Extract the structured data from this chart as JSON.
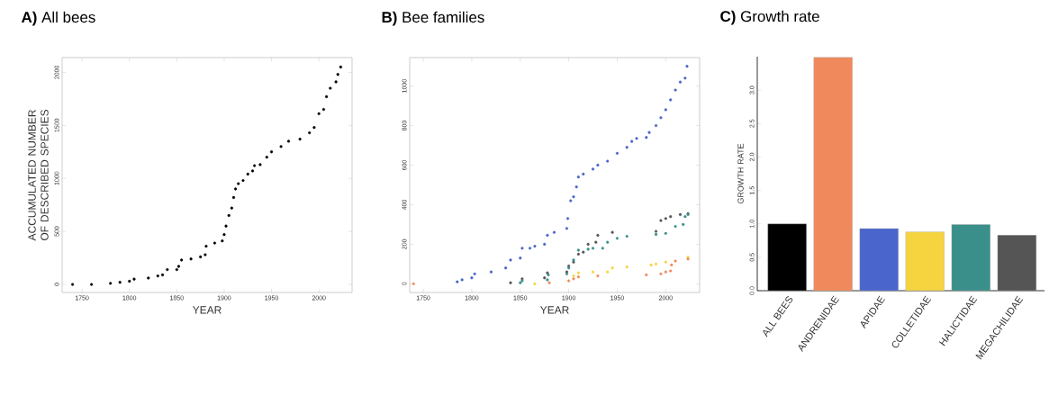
{
  "chart_data": [
    {
      "type": "scatter",
      "title": "**A)** All bees",
      "xlabel": "YEAR",
      "ylabel": "ACCUMULATED NUMBER OF DESCRIBED SPECIES",
      "marker": "circle",
      "xlim": [
        1729,
        2035
      ],
      "ylim": [
        -76,
        2139
      ],
      "xticks": [
        1750,
        1800,
        1850,
        1900,
        1950,
        2000
      ],
      "yticks": [
        0,
        500,
        1000,
        1500,
        2000
      ],
      "series": [
        {
          "color": "#000000",
          "x": [
            1740,
            1760,
            1780,
            1790,
            1800,
            1805,
            1820,
            1830,
            1835,
            1840,
            1850,
            1852,
            1855,
            1865,
            1875,
            1880,
            1881,
            1890,
            1898,
            1900,
            1902,
            1905,
            1908,
            1910,
            1912,
            1915,
            1920,
            1925,
            1930,
            1932,
            1938,
            1945,
            1950,
            1960,
            1968,
            1980,
            1990,
            1995,
            2000,
            2005,
            2008,
            2012,
            2018,
            2020,
            2023
          ],
          "values": [
            0,
            0,
            10,
            20,
            30,
            50,
            60,
            80,
            90,
            140,
            140,
            170,
            230,
            240,
            260,
            280,
            360,
            390,
            410,
            470,
            550,
            650,
            720,
            820,
            900,
            950,
            980,
            1040,
            1070,
            1120,
            1130,
            1200,
            1250,
            1300,
            1350,
            1370,
            1430,
            1480,
            1610,
            1650,
            1770,
            1850,
            1910,
            1980,
            2050
          ]
        }
      ]
    },
    {
      "type": "scatter",
      "title": "**B)** Bee families",
      "xlabel": "YEAR",
      "marker": "circle",
      "xlim": [
        1736,
        2035
      ],
      "ylim": [
        -44,
        1144
      ],
      "xticks": [
        1750,
        1800,
        1850,
        1900,
        1950,
        2000
      ],
      "yticks": [
        0,
        200,
        400,
        600,
        800,
        1000
      ],
      "series": [
        {
          "color": "#4a66cc",
          "x": [
            1785,
            1790,
            1800,
            1803,
            1820,
            1835,
            1840,
            1850,
            1852,
            1860,
            1865,
            1875,
            1878,
            1885,
            1898,
            1899,
            1902,
            1905,
            1908,
            1910,
            1915,
            1925,
            1930,
            1940,
            1950,
            1960,
            1965,
            1970,
            1980,
            1983,
            1990,
            1995,
            2000,
            2005,
            2010,
            2015,
            2020,
            2022
          ],
          "values": [
            10,
            20,
            30,
            50,
            60,
            80,
            120,
            130,
            180,
            180,
            190,
            200,
            245,
            260,
            280,
            330,
            420,
            440,
            490,
            540,
            555,
            580,
            600,
            620,
            660,
            690,
            720,
            735,
            740,
            765,
            800,
            840,
            880,
            930,
            980,
            1020,
            1040,
            1100
          ]
        },
        {
          "color": "#555555",
          "x": [
            1840,
            1852,
            1875,
            1878,
            1898,
            1900,
            1905,
            1910,
            1915,
            1920,
            1928,
            1930,
            1945,
            1990,
            1995,
            2000,
            2005,
            2015,
            2023
          ],
          "values": [
            5,
            25,
            30,
            55,
            60,
            90,
            110,
            150,
            160,
            200,
            210,
            245,
            260,
            265,
            320,
            330,
            340,
            350,
            355
          ]
        },
        {
          "color": "#3a8f8a",
          "x": [
            1850,
            1852,
            1878,
            1879,
            1898,
            1900,
            1905,
            1910,
            1920,
            1925,
            1935,
            1940,
            1950,
            1960,
            1990,
            2000,
            2010,
            2018,
            2020,
            2023
          ],
          "values": [
            5,
            15,
            20,
            45,
            50,
            80,
            120,
            170,
            175,
            180,
            180,
            210,
            230,
            240,
            250,
            255,
            290,
            300,
            340,
            350
          ]
        },
        {
          "color": "#f5d43f",
          "x": [
            1865,
            1880,
            1900,
            1905,
            1910,
            1925,
            1940,
            1945,
            1960,
            1985,
            1990,
            2000,
            2010,
            2023
          ],
          "values": [
            0,
            null,
            null,
            40,
            55,
            60,
            60,
            80,
            85,
            95,
            100,
            110,
            null,
            135
          ]
        },
        {
          "color": "#f08a5d",
          "x": [
            1740,
            1880,
            1900,
            1905,
            1910,
            1930,
            1980,
            1995,
            2000,
            2005,
            2006,
            2010,
            2023
          ],
          "values": [
            0,
            5,
            15,
            25,
            35,
            40,
            45,
            50,
            60,
            65,
            95,
            115,
            125
          ]
        }
      ]
    },
    {
      "type": "bar",
      "title": "**C)** Growth rate",
      "ylabel": "GROWTH RATE",
      "categories": [
        "ALL BEES",
        "ANDRENIDAE",
        "APIDAE",
        "COLLETIDAE",
        "HALICTIDAE",
        "MEGACHILIDAE"
      ],
      "values": [
        1.0,
        3.49,
        0.93,
        0.88,
        0.99,
        0.83
      ],
      "colors": [
        "#000000",
        "#f08a5d",
        "#4a66cc",
        "#f5d43f",
        "#3a8f8a",
        "#555555"
      ],
      "ylim": [
        0,
        3.5
      ],
      "yticks": [
        {
          "value": 0,
          "label": "0.0"
        },
        {
          "value": 0.5,
          "label": "0.5"
        },
        {
          "value": 1,
          "label": "1.0"
        },
        {
          "value": 1.5,
          "label": "1.5"
        },
        {
          "value": 2,
          "label": "2.0"
        },
        {
          "value": 2.5,
          "label": "2.5"
        },
        {
          "value": 3,
          "label": "3.0"
        }
      ]
    }
  ]
}
